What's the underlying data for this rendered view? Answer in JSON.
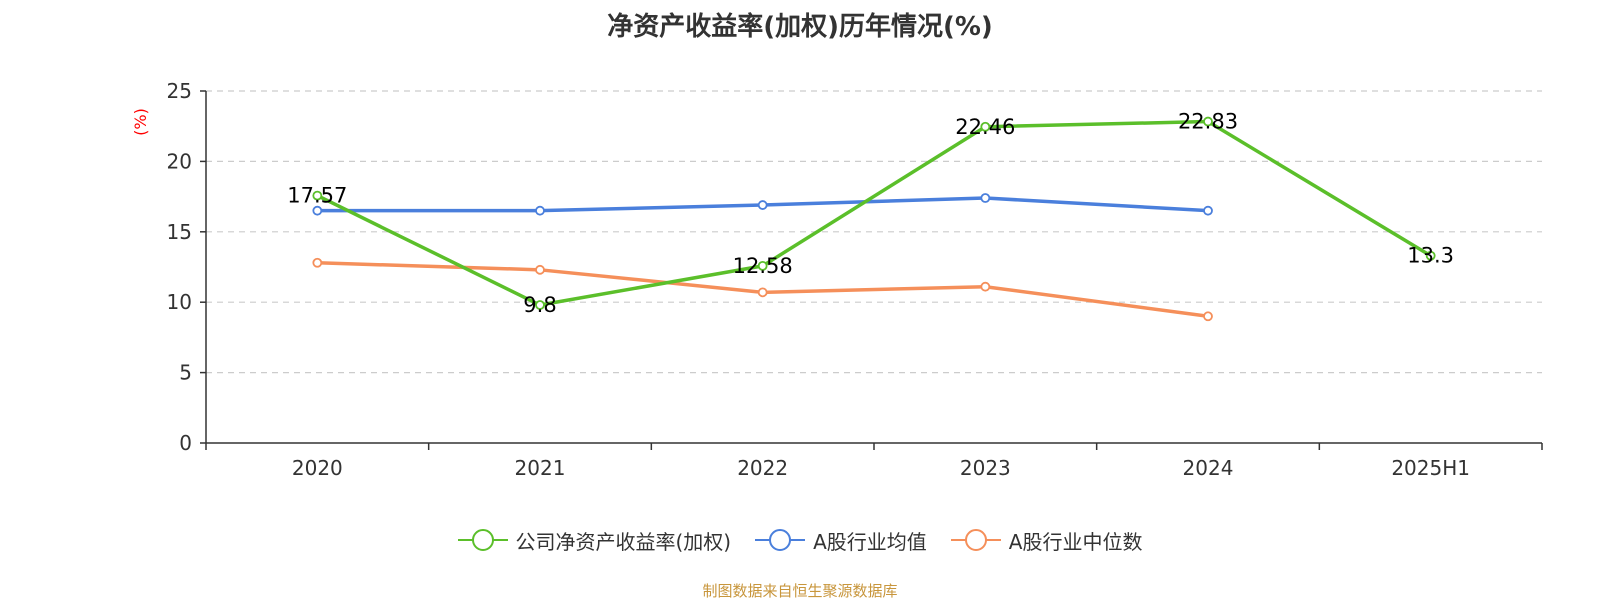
{
  "footer": {
    "text": "制图数据来自恒生聚源数据库",
    "color": "#c8963c"
  },
  "chart_data": {
    "type": "line",
    "title": "净资产收益率(加权)历年情况(%)",
    "ylabel": "(%)",
    "xlabel": "",
    "categories": [
      "2020",
      "2021",
      "2022",
      "2023",
      "2024",
      "2025H1"
    ],
    "ylim": [
      0,
      25
    ],
    "yticks": [
      0,
      5,
      10,
      15,
      20,
      25
    ],
    "grid": "horizontal dashed",
    "legend_position": "bottom",
    "series": [
      {
        "name": "公司净资产收益率(加权)",
        "color": "#5bbf2a",
        "values": [
          17.57,
          9.8,
          12.58,
          22.46,
          22.83,
          13.3
        ],
        "labels": [
          "17.57",
          "9.8",
          "12.58",
          "22.46",
          "22.83",
          "13.3"
        ]
      },
      {
        "name": "A股行业均值",
        "color": "#4a7fdc",
        "values": [
          16.5,
          16.5,
          16.9,
          17.4,
          16.5,
          null
        ]
      },
      {
        "name": "A股行业中位数",
        "color": "#f58f5a",
        "values": [
          12.8,
          12.3,
          10.7,
          11.1,
          9.0,
          null
        ]
      }
    ]
  }
}
